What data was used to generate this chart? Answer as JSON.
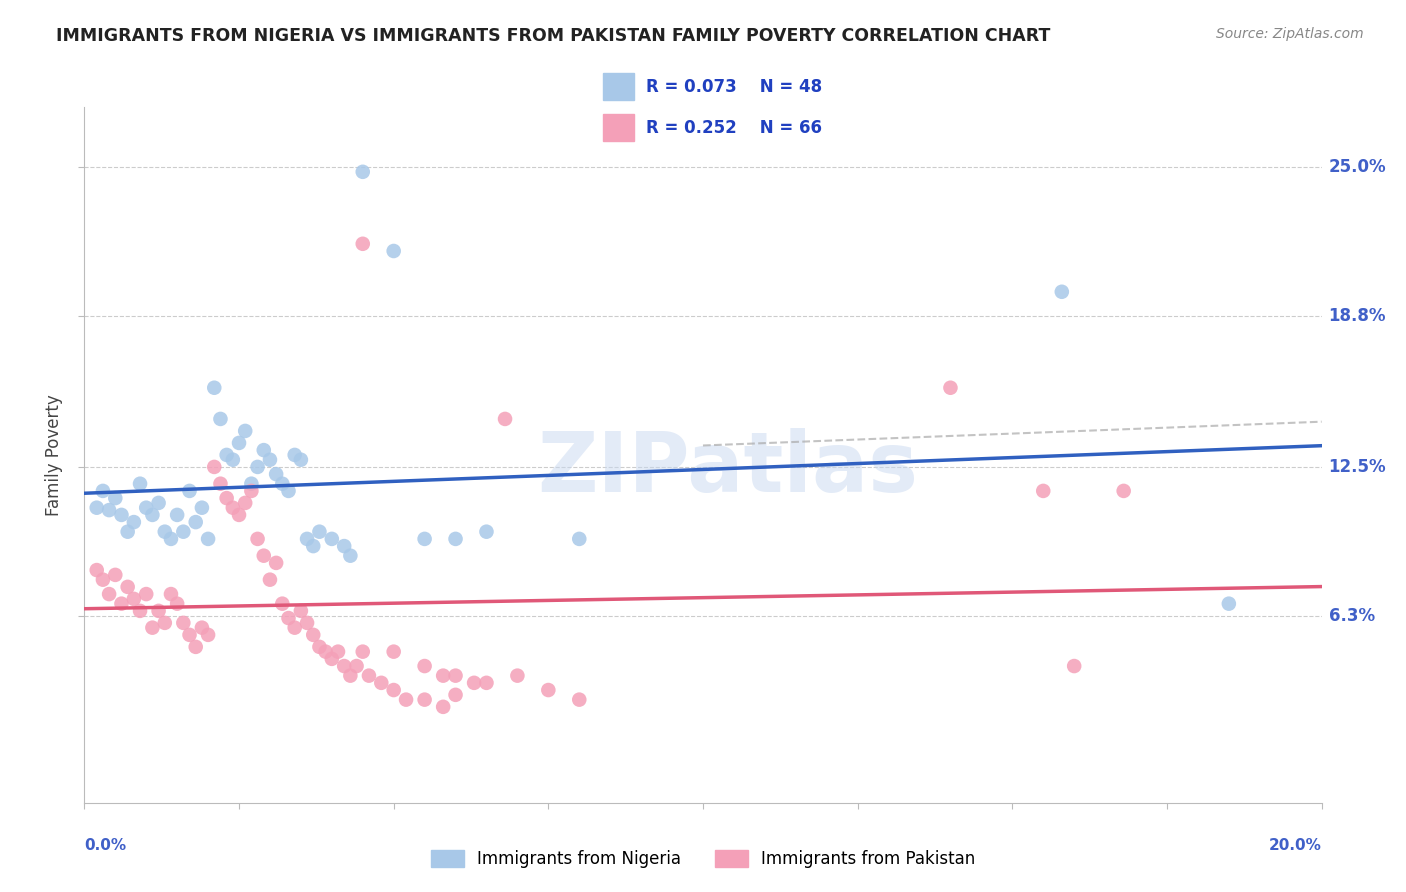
{
  "title": "IMMIGRANTS FROM NIGERIA VS IMMIGRANTS FROM PAKISTAN FAMILY POVERTY CORRELATION CHART",
  "source": "Source: ZipAtlas.com",
  "ylabel": "Family Poverty",
  "xlim": [
    0.0,
    0.2
  ],
  "ylim": [
    -0.015,
    0.275
  ],
  "yticks": [
    0.063,
    0.125,
    0.188,
    0.25
  ],
  "ytick_labels": [
    "6.3%",
    "12.5%",
    "18.8%",
    "25.0%"
  ],
  "legend_R_nigeria": "R = 0.073",
  "legend_N_nigeria": "N = 48",
  "legend_R_pakistan": "R = 0.252",
  "legend_N_pakistan": "N = 66",
  "nigeria_color": "#a8c8e8",
  "pakistan_color": "#f4a0b8",
  "nigeria_line_color": "#3060c0",
  "pakistan_line_color": "#e05878",
  "watermark_text": "ZIPatlas",
  "background_color": "#ffffff",
  "grid_color": "#cccccc",
  "title_color": "#222222",
  "right_axis_label_color": "#4060c8",
  "legend_text_color": "#2040c0",
  "nigeria_scatter": [
    [
      0.002,
      0.108
    ],
    [
      0.003,
      0.115
    ],
    [
      0.004,
      0.107
    ],
    [
      0.005,
      0.112
    ],
    [
      0.006,
      0.105
    ],
    [
      0.007,
      0.098
    ],
    [
      0.008,
      0.102
    ],
    [
      0.009,
      0.118
    ],
    [
      0.01,
      0.108
    ],
    [
      0.011,
      0.105
    ],
    [
      0.012,
      0.11
    ],
    [
      0.013,
      0.098
    ],
    [
      0.014,
      0.095
    ],
    [
      0.015,
      0.105
    ],
    [
      0.016,
      0.098
    ],
    [
      0.017,
      0.115
    ],
    [
      0.018,
      0.102
    ],
    [
      0.019,
      0.108
    ],
    [
      0.02,
      0.095
    ],
    [
      0.021,
      0.158
    ],
    [
      0.022,
      0.145
    ],
    [
      0.023,
      0.13
    ],
    [
      0.024,
      0.128
    ],
    [
      0.025,
      0.135
    ],
    [
      0.026,
      0.14
    ],
    [
      0.027,
      0.118
    ],
    [
      0.028,
      0.125
    ],
    [
      0.029,
      0.132
    ],
    [
      0.03,
      0.128
    ],
    [
      0.031,
      0.122
    ],
    [
      0.032,
      0.118
    ],
    [
      0.033,
      0.115
    ],
    [
      0.034,
      0.13
    ],
    [
      0.035,
      0.128
    ],
    [
      0.036,
      0.095
    ],
    [
      0.037,
      0.092
    ],
    [
      0.038,
      0.098
    ],
    [
      0.04,
      0.095
    ],
    [
      0.042,
      0.092
    ],
    [
      0.043,
      0.088
    ],
    [
      0.045,
      0.248
    ],
    [
      0.05,
      0.215
    ],
    [
      0.055,
      0.095
    ],
    [
      0.06,
      0.095
    ],
    [
      0.065,
      0.098
    ],
    [
      0.08,
      0.095
    ],
    [
      0.158,
      0.198
    ],
    [
      0.185,
      0.068
    ]
  ],
  "pakistan_scatter": [
    [
      0.002,
      0.082
    ],
    [
      0.003,
      0.078
    ],
    [
      0.004,
      0.072
    ],
    [
      0.005,
      0.08
    ],
    [
      0.006,
      0.068
    ],
    [
      0.007,
      0.075
    ],
    [
      0.008,
      0.07
    ],
    [
      0.009,
      0.065
    ],
    [
      0.01,
      0.072
    ],
    [
      0.011,
      0.058
    ],
    [
      0.012,
      0.065
    ],
    [
      0.013,
      0.06
    ],
    [
      0.014,
      0.072
    ],
    [
      0.015,
      0.068
    ],
    [
      0.016,
      0.06
    ],
    [
      0.017,
      0.055
    ],
    [
      0.018,
      0.05
    ],
    [
      0.019,
      0.058
    ],
    [
      0.02,
      0.055
    ],
    [
      0.021,
      0.125
    ],
    [
      0.022,
      0.118
    ],
    [
      0.023,
      0.112
    ],
    [
      0.024,
      0.108
    ],
    [
      0.025,
      0.105
    ],
    [
      0.026,
      0.11
    ],
    [
      0.027,
      0.115
    ],
    [
      0.028,
      0.095
    ],
    [
      0.029,
      0.088
    ],
    [
      0.03,
      0.078
    ],
    [
      0.031,
      0.085
    ],
    [
      0.032,
      0.068
    ],
    [
      0.033,
      0.062
    ],
    [
      0.034,
      0.058
    ],
    [
      0.035,
      0.065
    ],
    [
      0.036,
      0.06
    ],
    [
      0.037,
      0.055
    ],
    [
      0.038,
      0.05
    ],
    [
      0.039,
      0.048
    ],
    [
      0.04,
      0.045
    ],
    [
      0.041,
      0.048
    ],
    [
      0.042,
      0.042
    ],
    [
      0.043,
      0.038
    ],
    [
      0.044,
      0.042
    ],
    [
      0.045,
      0.048
    ],
    [
      0.046,
      0.038
    ],
    [
      0.048,
      0.035
    ],
    [
      0.05,
      0.032
    ],
    [
      0.052,
      0.028
    ],
    [
      0.055,
      0.028
    ],
    [
      0.058,
      0.025
    ],
    [
      0.06,
      0.03
    ],
    [
      0.063,
      0.035
    ],
    [
      0.045,
      0.218
    ],
    [
      0.05,
      0.048
    ],
    [
      0.055,
      0.042
    ],
    [
      0.058,
      0.038
    ],
    [
      0.06,
      0.038
    ],
    [
      0.065,
      0.035
    ],
    [
      0.068,
      0.145
    ],
    [
      0.07,
      0.038
    ],
    [
      0.075,
      0.032
    ],
    [
      0.08,
      0.028
    ],
    [
      0.14,
      0.158
    ],
    [
      0.155,
      0.115
    ],
    [
      0.16,
      0.042
    ],
    [
      0.168,
      0.115
    ]
  ]
}
